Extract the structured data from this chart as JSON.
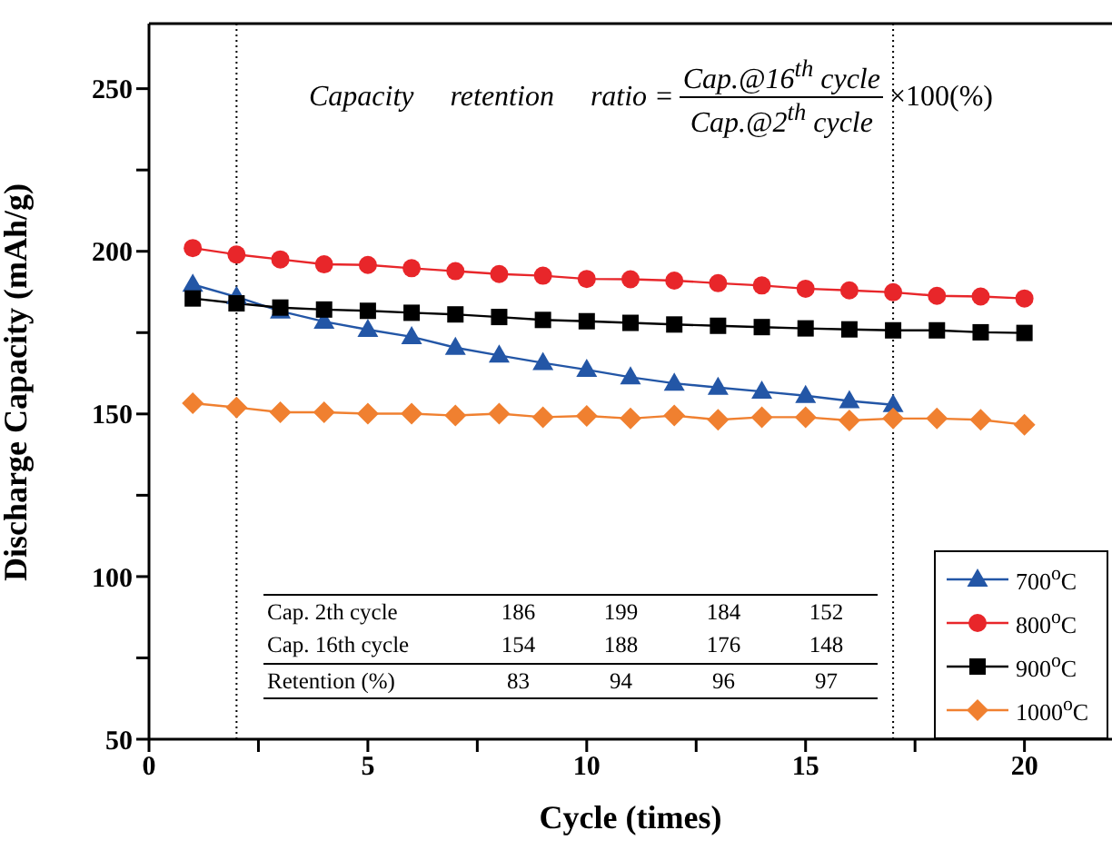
{
  "chart_data": {
    "type": "line",
    "xlabel": "Cycle (times)",
    "ylabel": "Discharge Capacity (mAh/g)",
    "x": [
      1,
      2,
      3,
      4,
      5,
      6,
      7,
      8,
      9,
      10,
      11,
      12,
      13,
      14,
      15,
      16,
      17,
      18,
      19,
      20
    ],
    "xlim": [
      0,
      22
    ],
    "xticks": [
      0,
      {
        "value": 2.5,
        "label": null
      },
      5,
      {
        "value": 7.5,
        "label": null
      },
      10,
      {
        "value": 12.5,
        "label": null
      },
      15,
      {
        "value": 17.5,
        "label": null
      },
      20
    ],
    "ylim": [
      50,
      270
    ],
    "yticks": [
      50,
      {
        "value": 75,
        "label": null
      },
      100,
      {
        "value": 125,
        "label": null
      },
      150,
      {
        "value": 175,
        "label": null
      },
      200,
      {
        "value": 225,
        "label": null
      },
      250
    ],
    "legend": "bottom right",
    "line_style": "solid",
    "series": [
      {
        "name": "700$^{o}$C",
        "color": "#2356a6",
        "marker": "triangle",
        "values": [
          189.8,
          186,
          181.6,
          178.4,
          175.9,
          173.7,
          170.4,
          168,
          165.7,
          163.6,
          161.3,
          159.4,
          158.1,
          156.9,
          155.6,
          154,
          152.8,
          null,
          null,
          null
        ]
      },
      {
        "name": "800$^{o}$C",
        "color": "#e8262a",
        "marker": "circle",
        "values": [
          201,
          199,
          197.5,
          196,
          195.8,
          194.8,
          193.9,
          193,
          192.5,
          191.5,
          191.4,
          191,
          190.2,
          189.5,
          188.5,
          188,
          187.4,
          186.3,
          186.1,
          185.5
        ]
      },
      {
        "name": "900$^{o}$C",
        "color": "#000000",
        "marker": "square",
        "values": [
          185.5,
          184,
          182.7,
          182.1,
          181.7,
          181.1,
          180.6,
          179.8,
          178.9,
          178.5,
          178,
          177.5,
          177.1,
          176.7,
          176.3,
          176,
          175.7,
          175.7,
          175.1,
          174.9
        ]
      },
      {
        "name": "1000$^{o}$C",
        "color": "#f08030",
        "marker": "diamond",
        "values": [
          153.3,
          152,
          150.5,
          150.5,
          150.1,
          150.1,
          149.5,
          150.1,
          149,
          149.4,
          148.6,
          149.5,
          148.2,
          149,
          149,
          148,
          148.6,
          148.6,
          148.2,
          146.7
        ]
      }
    ],
    "ref_lines": [
      {
        "axis": "x",
        "value": 2,
        "color": "#000000",
        "line_style": "dotted"
      },
      {
        "axis": "x",
        "value": 17,
        "color": "#000000",
        "line_style": "dotted"
      }
    ],
    "annotations": [
      "Capacity     retention     ratio =",
      "Cap.@16$^{th}$ cycle",
      "Cap.@2$^{th}$ cycle",
      "×100(%)",
      "Cap. 2th cycle",
      "186",
      "199",
      "184",
      "152",
      "Cap. 16th cycle",
      "154",
      "188",
      "176",
      "148",
      "Retention (%)",
      "83",
      "94",
      "96",
      "97"
    ]
  }
}
